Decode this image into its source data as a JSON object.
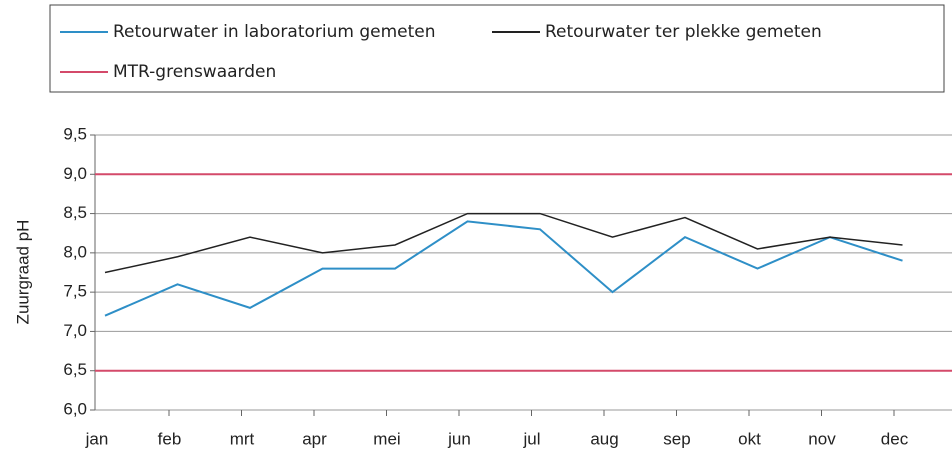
{
  "chart_data": {
    "type": "line",
    "y_label": "Zuurgraad pH",
    "categories": [
      "jan",
      "feb",
      "mrt",
      "apr",
      "mei",
      "jun",
      "jul",
      "aug",
      "sep",
      "okt",
      "nov",
      "dec"
    ],
    "series": [
      {
        "name": "Retourwater in laboratorium gemeten",
        "color": "#2e8fc7",
        "values": [
          7.2,
          7.6,
          7.3,
          7.8,
          7.8,
          8.4,
          8.3,
          7.5,
          8.2,
          7.8,
          8.2,
          7.9
        ]
      },
      {
        "name": "Retourwater ter plekke gemeten",
        "color": "#222222",
        "values": [
          7.75,
          7.95,
          8.2,
          8.0,
          8.1,
          8.5,
          8.5,
          8.2,
          8.45,
          8.05,
          8.2,
          8.1
        ]
      }
    ],
    "reference_lines": {
      "name": "MTR-grenswaarden",
      "color": "#d44a6a",
      "values": [
        6.5,
        9.0
      ]
    },
    "ylim": [
      6.0,
      9.5
    ],
    "yticks": [
      {
        "value": 6.0,
        "label": "6,0"
      },
      {
        "value": 6.5,
        "label": "6,5"
      },
      {
        "value": 7.0,
        "label": "7,0"
      },
      {
        "value": 7.5,
        "label": "7,5"
      },
      {
        "value": 8.0,
        "label": "8,0"
      },
      {
        "value": 8.5,
        "label": "8,5"
      },
      {
        "value": 9.0,
        "label": "9,0"
      },
      {
        "value": 9.5,
        "label": "9,5"
      }
    ],
    "grid": true
  }
}
